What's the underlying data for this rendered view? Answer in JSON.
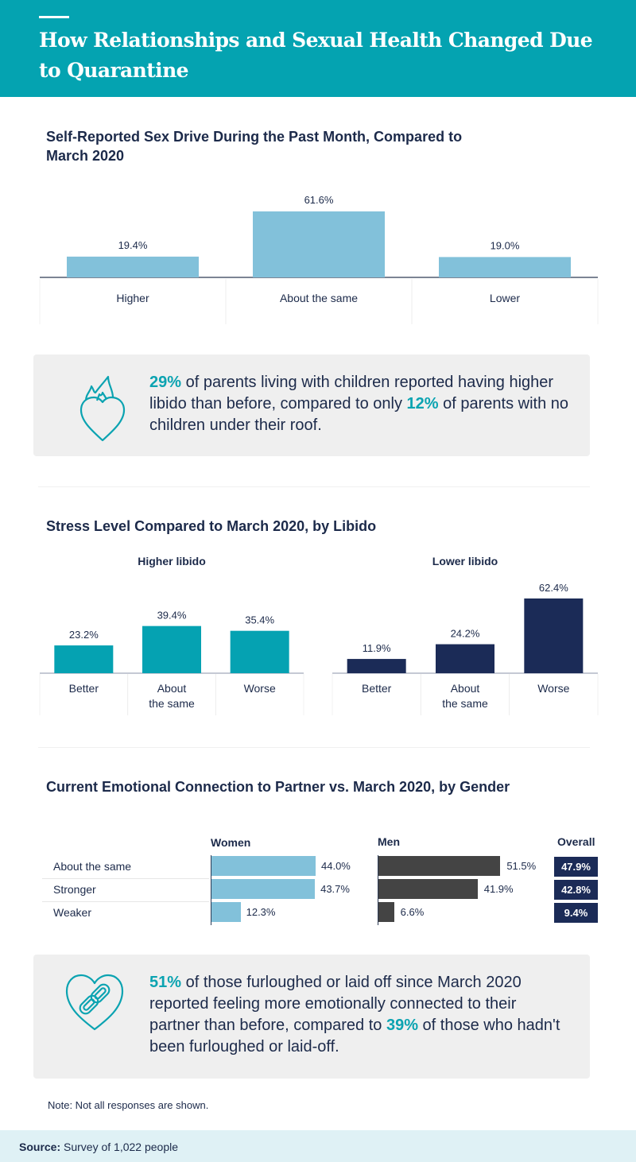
{
  "header": {
    "title": "How Relationships and Sexual Health Changed Due to Quarantine"
  },
  "colors": {
    "header_bg": "#04a3b1",
    "light_blue": "#82c1da",
    "teal": "#05a2b2",
    "navy": "#1b2b57",
    "dark_gray": "#444444",
    "highlight": "#0ba3b1",
    "callout_bg": "#efefef",
    "footer_bg": "#dff1f5"
  },
  "callouts": [
    {
      "icon": "flaming-heart-icon",
      "parts": [
        {
          "text": "29%",
          "highlight": true
        },
        {
          "text": " of parents living with children reported having higher libido than before, compared to only ",
          "highlight": false
        },
        {
          "text": "12%",
          "highlight": true
        },
        {
          "text": " of parents with no children under their roof.",
          "highlight": false
        }
      ]
    },
    {
      "icon": "heart-chain-link-icon",
      "parts": [
        {
          "text": "51%",
          "highlight": true
        },
        {
          "text": " of those furloughed or laid off since March 2020 reported feeling more emotionally connected to their partner than before, compared to ",
          "highlight": false
        },
        {
          "text": "39%",
          "highlight": true
        },
        {
          "text": " of those who hadn't been furloughed or laid-off.",
          "highlight": false
        }
      ]
    }
  ],
  "note": "Note: Not all responses are shown.",
  "footer": {
    "source_label": "Source:",
    "source_text": " Survey of 1,022 people"
  },
  "chart_data": [
    {
      "type": "bar",
      "title": "Self-Reported Sex Drive During the Past Month, Compared to March 2020",
      "categories": [
        "Higher",
        "About the same",
        "Lower"
      ],
      "values": [
        19.4,
        61.6,
        19.0
      ],
      "value_labels": [
        "19.4%",
        "61.6%",
        "19.0%"
      ],
      "xlabel": "",
      "ylabel": "",
      "ylim": [
        0,
        70
      ],
      "grid": false,
      "color": "#82c1da"
    },
    {
      "type": "bar",
      "title": "Stress Level Compared to March 2020, by Libido",
      "panels": [
        {
          "subtitle": "Higher libido",
          "categories": [
            "Better",
            "About the same",
            "Worse"
          ],
          "category_lines": [
            [
              "Better"
            ],
            [
              "About",
              "the same"
            ],
            [
              "Worse"
            ]
          ],
          "values": [
            23.2,
            39.4,
            35.4
          ],
          "value_labels": [
            "23.2%",
            "39.4%",
            "35.4%"
          ],
          "color": "#05a2b2"
        },
        {
          "subtitle": "Lower libido",
          "categories": [
            "Better",
            "About the same",
            "Worse"
          ],
          "category_lines": [
            [
              "Better"
            ],
            [
              "About",
              "the same"
            ],
            [
              "Worse"
            ]
          ],
          "values": [
            11.9,
            24.2,
            62.4
          ],
          "value_labels": [
            "11.9%",
            "24.2%",
            "62.4%"
          ],
          "color": "#1b2b57"
        }
      ],
      "ylim": [
        0,
        70
      ],
      "grid": false
    },
    {
      "type": "bar",
      "orientation": "horizontal",
      "title": "Current Emotional Connection to Partner vs. March 2020, by Gender",
      "categories": [
        "About the same",
        "Stronger",
        "Weaker"
      ],
      "series": [
        {
          "name": "Women",
          "values": [
            44.0,
            43.7,
            12.3
          ],
          "value_labels": [
            "44.0%",
            "43.7%",
            "12.3%"
          ],
          "color": "#82c1da"
        },
        {
          "name": "Men",
          "values": [
            51.5,
            41.9,
            6.6
          ],
          "value_labels": [
            "51.5%",
            "41.9%",
            "6.6%"
          ],
          "color": "#444444"
        },
        {
          "name": "Overall",
          "values": [
            47.9,
            42.8,
            9.4
          ],
          "value_labels": [
            "47.9%",
            "42.8%",
            "9.4%"
          ],
          "color": "#1b2b57"
        }
      ],
      "xlim": [
        0,
        60
      ],
      "grid": false
    }
  ]
}
